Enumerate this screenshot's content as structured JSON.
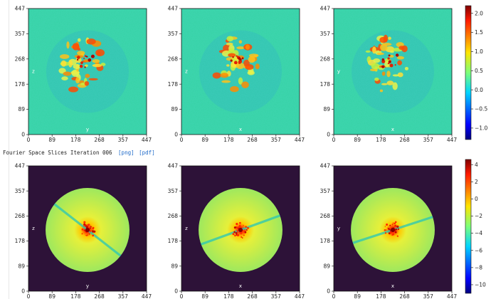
{
  "top_figure": {
    "panels": [
      {
        "xlabel": "y",
        "ylabel": "z"
      },
      {
        "xlabel": "x",
        "ylabel": "z"
      },
      {
        "xlabel": "x",
        "ylabel": "y"
      }
    ],
    "axis_ticks": [
      "0",
      "89",
      "178",
      "268",
      "357",
      "447"
    ],
    "colorbar": {
      "ticks": [
        "2.0",
        "1.5",
        "1.0",
        "0.5",
        "0.0",
        "−0.5",
        "−1.0"
      ],
      "range": [
        -1.3,
        2.2
      ]
    }
  },
  "caption": {
    "text": "Fourier Space Slices Iteration 006",
    "link_png": "[png]",
    "link_pdf": "[pdf]"
  },
  "bottom_figure": {
    "panels": [
      {
        "xlabel": "y",
        "ylabel": "z"
      },
      {
        "xlabel": "x",
        "ylabel": "z"
      },
      {
        "xlabel": "x",
        "ylabel": "y"
      }
    ],
    "axis_ticks": [
      "0",
      "89",
      "178",
      "268",
      "357",
      "447"
    ],
    "colorbar": {
      "ticks": [
        "4",
        "2",
        "0",
        "−2",
        "−4",
        "−6",
        "−8",
        "−10"
      ],
      "range": [
        -11,
        4.6
      ]
    }
  },
  "colors": {
    "link": "#1a67c8",
    "fourier_background": "#2d1238",
    "real_background": "#35d3a3"
  }
}
